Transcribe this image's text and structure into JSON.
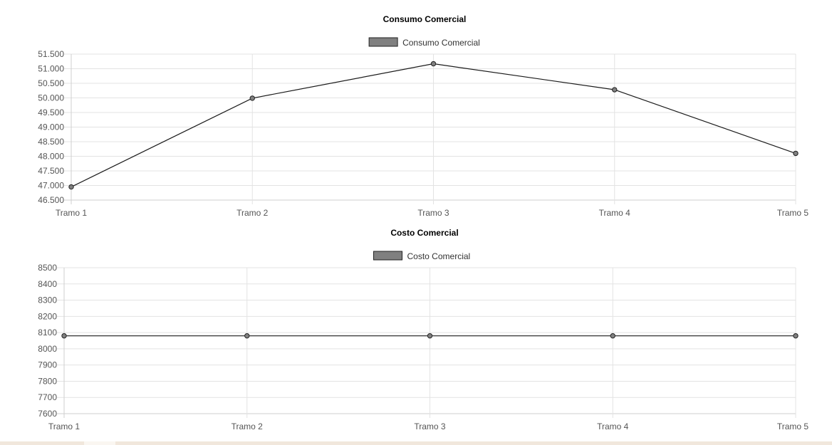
{
  "chart_data": [
    {
      "type": "line",
      "title": "Consumo Comercial",
      "categories": [
        "Tramo 1",
        "Tramo 2",
        "Tramo 3",
        "Tramo 4",
        "Tramo 5"
      ],
      "series": [
        {
          "name": "Consumo Comercial",
          "values": [
            46950,
            49990,
            51170,
            50280,
            48100
          ]
        }
      ],
      "ylim": [
        46500,
        51500
      ],
      "yticks": [
        "51.500",
        "51.000",
        "50.500",
        "50.000",
        "49.500",
        "49.000",
        "48.500",
        "48.000",
        "47.500",
        "47.000",
        "46.500"
      ],
      "grid": true,
      "legend": "top",
      "line_color": "#1a1a1a",
      "point_color": "#808080"
    },
    {
      "type": "line",
      "title": "Costo Comercial",
      "categories": [
        "Tramo 1",
        "Tramo 2",
        "Tramo 3",
        "Tramo 4",
        "Tramo 5"
      ],
      "series": [
        {
          "name": "Costo Comercial",
          "values": [
            8080,
            8080,
            8080,
            8080,
            8080
          ]
        }
      ],
      "ylim": [
        7600,
        8500
      ],
      "yticks": [
        "8500",
        "8400",
        "8300",
        "8200",
        "8100",
        "8000",
        "7900",
        "7800",
        "7700",
        "7600"
      ],
      "grid": true,
      "legend": "top",
      "line_color": "#1a1a1a",
      "point_color": "#808080"
    }
  ]
}
